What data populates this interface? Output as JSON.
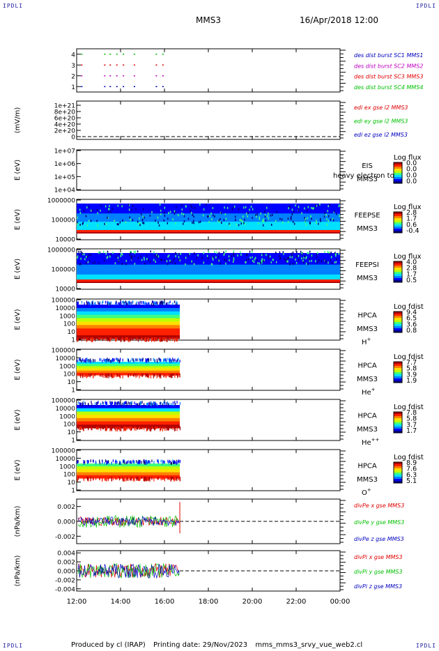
{
  "corner_label": "IPDLI",
  "header": {
    "title": "MMS3",
    "date": "16/Apr/2018 12:00"
  },
  "footer": {
    "produced": "Produced by cl (IRAP)",
    "printing": "Printing date: 29/Nov/2023",
    "file": "mms_mms3_srvy_vue_web2.cl"
  },
  "colors": {
    "red": "#e00000",
    "green": "#00c000",
    "blue": "#0000c0",
    "magenta": "#c000c0",
    "cmap": [
      "#00007a",
      "#0000ff",
      "#0080ff",
      "#00e0ff",
      "#40ff80",
      "#c0ff00",
      "#ffe000",
      "#ff8000",
      "#ff2000",
      "#b00000"
    ]
  },
  "chart_data": {
    "type": "multi-panel time series",
    "x_ticks": [
      "12:00",
      "14:00",
      "16:00",
      "18:00",
      "20:00",
      "22:00",
      "00:00"
    ],
    "xlim_hours": [
      12,
      24
    ],
    "data_end_hour": 16.7,
    "panels": [
      {
        "id": "burst",
        "type": "scatter",
        "yticks": [
          "1",
          "2",
          "3",
          "4"
        ],
        "ylim": [
          0.5,
          4.5
        ],
        "legend": [
          {
            "label": "des dist burst SC1 MMS1",
            "color": "#0000c0"
          },
          {
            "label": "des dist burst SC2 MMS2",
            "color": "#c000c0"
          },
          {
            "label": "des dist burst SC3 MMS3",
            "color": "#e00000"
          },
          {
            "label": "des dist burst SC4 MMS4",
            "color": "#00c000"
          }
        ],
        "burst_times_hours": [
          12.2,
          13.25,
          13.5,
          13.8,
          14.1,
          14.6,
          15.6,
          15.9
        ]
      },
      {
        "id": "edi",
        "type": "line",
        "ylabel": "(mV/m)",
        "yticks": [
          "0",
          "2e+20",
          "4e+20",
          "6e+20",
          "8e+20",
          "1e+21"
        ],
        "ylim": [
          0,
          1e+21
        ],
        "legend": [
          {
            "label": "edi ex gse l2 MMS3",
            "color": "#e00000"
          },
          {
            "label": "edi ey gse l2 MMS3",
            "color": "#00c000"
          },
          {
            "label": "edi ez gse l2 MMS3",
            "color": "#0000c0"
          }
        ]
      },
      {
        "id": "eis",
        "type": "heatmap",
        "ylabel": "E (eV)",
        "yticks": [
          "1e+04",
          "1e+05",
          "1e+06",
          "1e+07"
        ],
        "instrument": [
          "EIS",
          "MMS3"
        ],
        "overlay_text": "heavy electron to",
        "cbar_title": "Log flux",
        "cbar_ticks": [
          "0.0",
          "0.0",
          "0.0",
          "0.0"
        ]
      },
      {
        "id": "feepse",
        "type": "heatmap",
        "ylabel": "E (eV)",
        "yticks": [
          "10000",
          "100000",
          "1000000"
        ],
        "instrument": [
          "FEEPSE",
          "MMS3"
        ],
        "cbar_title": "Log flux",
        "cbar_ticks": [
          "2.8",
          "1.7",
          "0.6",
          "-0.4"
        ]
      },
      {
        "id": "feepsi",
        "type": "heatmap",
        "ylabel": "E (eV)",
        "yticks": [
          "10000",
          "100000",
          "1000000"
        ],
        "instrument": [
          "FEEPSI",
          "MMS3"
        ],
        "cbar_title": "Log flux",
        "cbar_ticks": [
          "4.0",
          "2.8",
          "1.7",
          "0.5"
        ]
      },
      {
        "id": "hpca_h",
        "type": "heatmap",
        "ylabel": "E (eV)",
        "yticks": [
          "1",
          "10",
          "100",
          "1000",
          "10000",
          "100000"
        ],
        "instrument": [
          "HPCA",
          "MMS3"
        ],
        "species": "H",
        "species_sup": "+",
        "cbar_title": "Log fdist",
        "cbar_ticks": [
          "9.4",
          "6.5",
          "3.6",
          "0.8"
        ]
      },
      {
        "id": "hpca_he",
        "type": "heatmap",
        "ylabel": "E (eV)",
        "yticks": [
          "1",
          "10",
          "100",
          "1000",
          "10000",
          "100000"
        ],
        "instrument": [
          "HPCA",
          "MMS3"
        ],
        "species": "He",
        "species_sup": "+",
        "cbar_title": "Log fdist",
        "cbar_ticks": [
          "7.7",
          "5.8",
          "3.9",
          "1.9"
        ]
      },
      {
        "id": "hpca_he2",
        "type": "heatmap",
        "ylabel": "E (eV)",
        "yticks": [
          "1",
          "10",
          "100",
          "1000",
          "10000",
          "100000"
        ],
        "instrument": [
          "HPCA",
          "MMS3"
        ],
        "species": "He",
        "species_sup": "++",
        "cbar_title": "Log fdist",
        "cbar_ticks": [
          "7.8",
          "5.8",
          "3.7",
          "1.7"
        ]
      },
      {
        "id": "hpca_o",
        "type": "heatmap",
        "ylabel": "E (eV)",
        "yticks": [
          "1",
          "10",
          "100",
          "1000",
          "10000",
          "100000"
        ],
        "instrument": [
          "HPCA",
          "MMS3"
        ],
        "species": "O",
        "species_sup": "+",
        "cbar_title": "Log fdist",
        "cbar_ticks": [
          "8.9",
          "7.6",
          "6.3",
          "5.1"
        ]
      },
      {
        "id": "divpe",
        "type": "line",
        "ylabel": "(nPa/km)",
        "yticks": [
          "-0.002",
          "0.000",
          "0.002"
        ],
        "ylim": [
          -0.003,
          0.003
        ],
        "legend": [
          {
            "label": "divPe x gse MMS3",
            "color": "#e00000"
          },
          {
            "label": "divPe y gse MMS3",
            "color": "#00c000"
          },
          {
            "label": "divPe z gse MMS3",
            "color": "#0000c0"
          }
        ]
      },
      {
        "id": "divpi",
        "type": "line",
        "ylabel": "(nPa/km)",
        "yticks": [
          "-0.004",
          "-0.002",
          "0.000",
          "0.002",
          "0.004"
        ],
        "ylim": [
          -0.0045,
          0.0045
        ],
        "legend": [
          {
            "label": "divPi x gse MMS3",
            "color": "#e00000"
          },
          {
            "label": "divPi y gse MMS3",
            "color": "#00c000"
          },
          {
            "label": "divPi z gse MMS3",
            "color": "#0000c0"
          }
        ]
      }
    ]
  }
}
